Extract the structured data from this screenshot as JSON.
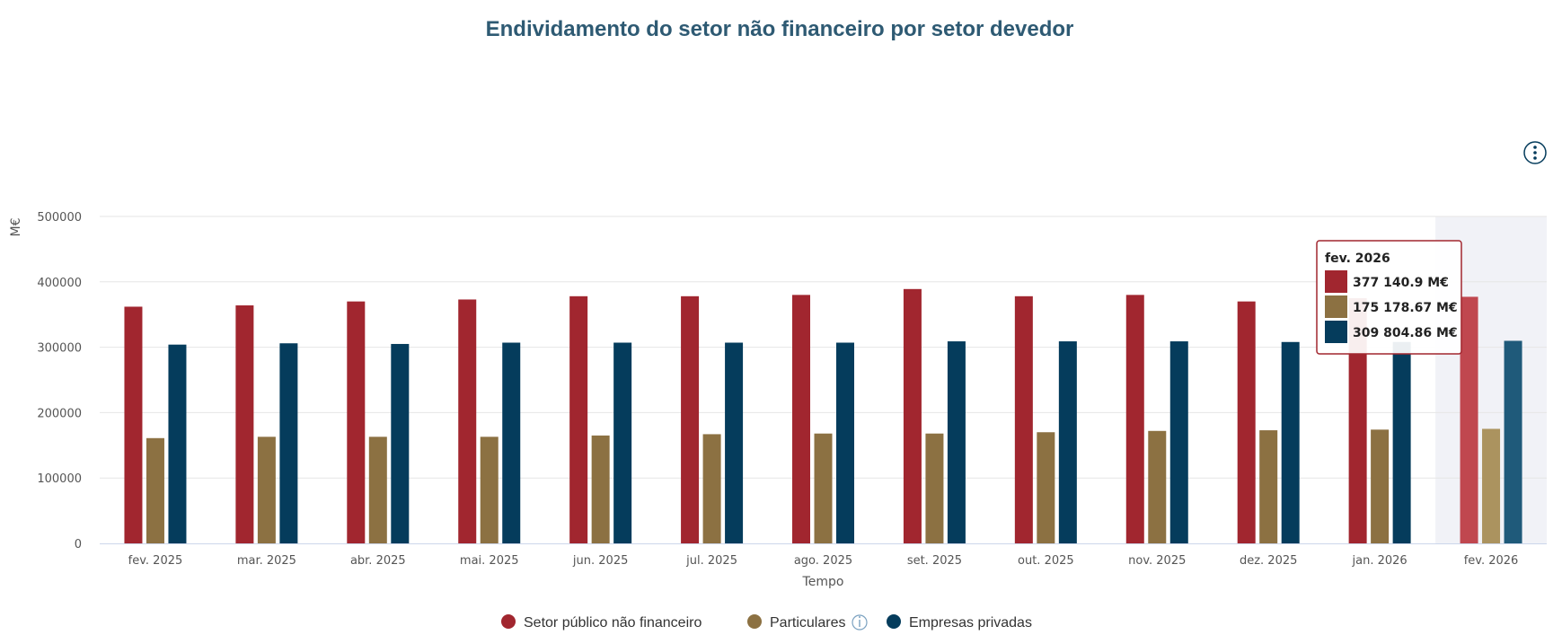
{
  "chart_data": {
    "type": "bar",
    "title": "Endividamento do setor não financeiro por setor devedor",
    "xlabel": "Tempo",
    "ylabel": "M€",
    "ylim": [
      0,
      500000
    ],
    "yticks": [
      "0",
      "100000",
      "200000",
      "300000",
      "400000",
      "500000"
    ],
    "grid": true,
    "legend_position": "bottom",
    "categories": [
      "fev. 2025",
      "mar. 2025",
      "abr. 2025",
      "mai. 2025",
      "jun. 2025",
      "jul. 2025",
      "ago. 2025",
      "set. 2025",
      "out. 2025",
      "nov. 2025",
      "dez. 2025",
      "jan. 2026",
      "fev. 2026"
    ],
    "series": [
      {
        "name": "Setor público não financeiro",
        "color": "#a1262f",
        "values": [
          362000,
          364000,
          370000,
          373000,
          378000,
          378000,
          380000,
          389000,
          378000,
          380000,
          370000,
          375000,
          377140.9
        ]
      },
      {
        "name": "Particulares",
        "color": "#8c7142",
        "values": [
          161000,
          163000,
          163000,
          163000,
          165000,
          167000,
          168000,
          168000,
          170000,
          172000,
          173000,
          174000,
          175178.67
        ]
      },
      {
        "name": "Empresas privadas",
        "color": "#053c5c",
        "values": [
          304000,
          306000,
          305000,
          307000,
          307000,
          307000,
          307000,
          309000,
          309000,
          309000,
          308000,
          308000,
          309804.86
        ]
      }
    ]
  },
  "tooltip": {
    "title": "fev. 2026",
    "values": [
      "377 140.9 M€",
      "175 178.67 M€",
      "309 804.86 M€"
    ]
  },
  "legend_info_icon": "info-icon",
  "menu_icon": "more-vertical-icon"
}
